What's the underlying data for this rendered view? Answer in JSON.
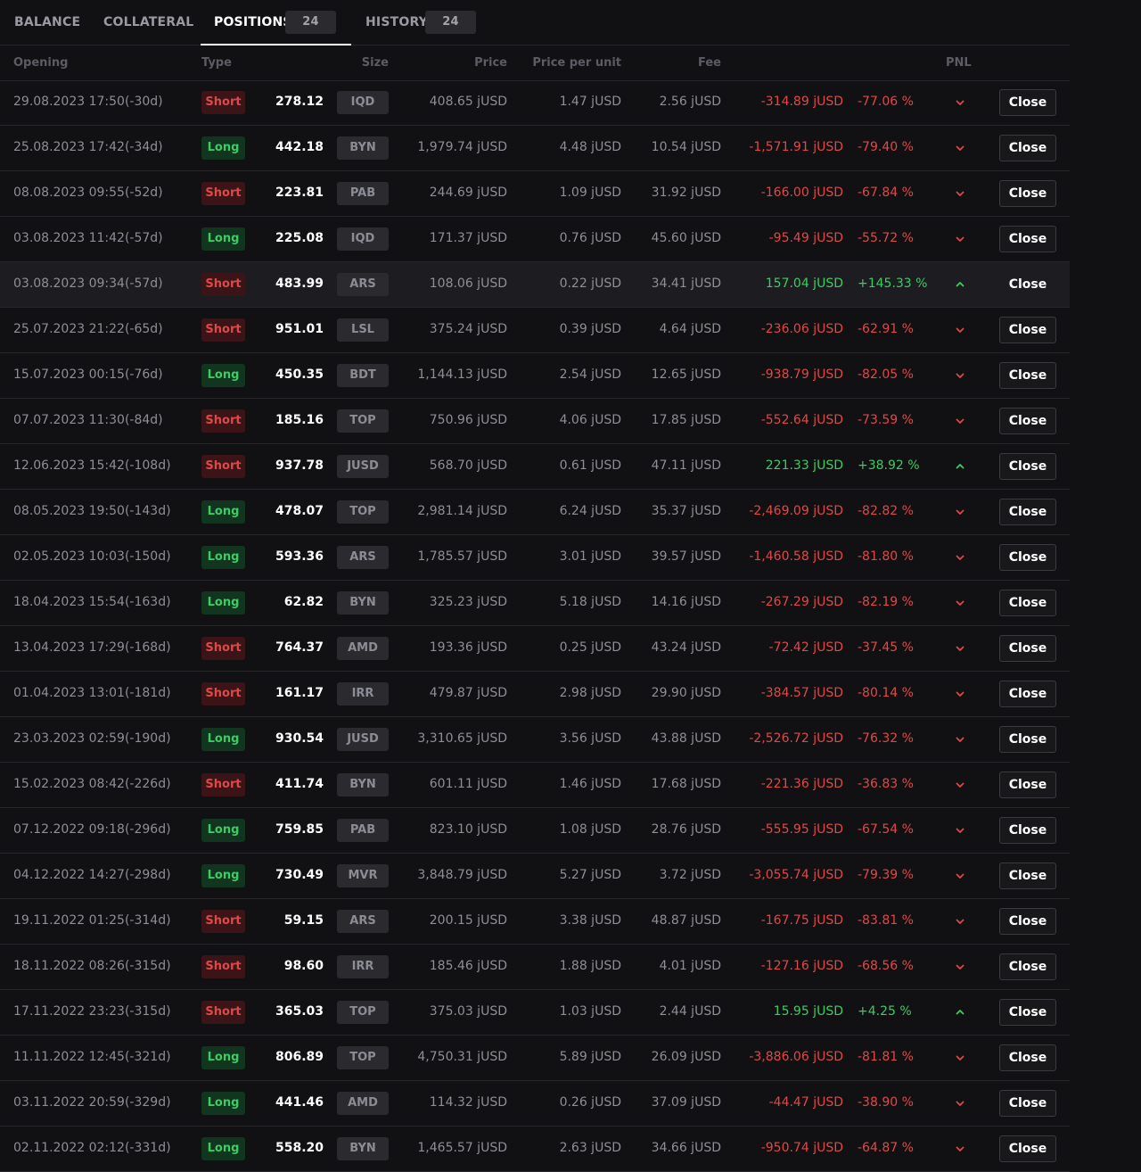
{
  "tabs": [
    {
      "label": "BALANCE",
      "count": null,
      "active": false
    },
    {
      "label": "COLLATERAL",
      "count": null,
      "active": false
    },
    {
      "label": "POSITIONS",
      "count": "24",
      "active": true
    },
    {
      "label": "HISTORY",
      "count": "24",
      "active": false
    }
  ],
  "columns": {
    "opening": "Opening",
    "type": "Type",
    "size": "Size",
    "price": "Price",
    "price_per_unit": "Price per unit",
    "fee": "Fee",
    "pnl": "PNL"
  },
  "close_label": "Close",
  "colors": {
    "negative": "#e04848",
    "positive": "#3ecb63",
    "accent": "#ffffff"
  },
  "rows": [
    {
      "opening": "29.08.2023 17:50(-30d)",
      "type": "Short",
      "size": "278.12",
      "currency": "IQD",
      "price": "408.65 jUSD",
      "ppu": "1.47 jUSD",
      "fee": "2.56 jUSD",
      "pnl": "-314.89 jUSD",
      "pnl_pct": "-77.06 %",
      "positive": false
    },
    {
      "opening": "25.08.2023 17:42(-34d)",
      "type": "Long",
      "size": "442.18",
      "currency": "BYN",
      "price": "1,979.74 jUSD",
      "ppu": "4.48 jUSD",
      "fee": "10.54 jUSD",
      "pnl": "-1,571.91 jUSD",
      "pnl_pct": "-79.40 %",
      "positive": false
    },
    {
      "opening": "08.08.2023 09:55(-52d)",
      "type": "Short",
      "size": "223.81",
      "currency": "PAB",
      "price": "244.69 jUSD",
      "ppu": "1.09 jUSD",
      "fee": "31.92 jUSD",
      "pnl": "-166.00 jUSD",
      "pnl_pct": "-67.84 %",
      "positive": false
    },
    {
      "opening": "03.08.2023 11:42(-57d)",
      "type": "Long",
      "size": "225.08",
      "currency": "IQD",
      "price": "171.37 jUSD",
      "ppu": "0.76 jUSD",
      "fee": "45.60 jUSD",
      "pnl": "-95.49 jUSD",
      "pnl_pct": "-55.72 %",
      "positive": false
    },
    {
      "opening": "03.08.2023 09:34(-57d)",
      "type": "Short",
      "size": "483.99",
      "currency": "ARS",
      "price": "108.06 jUSD",
      "ppu": "0.22 jUSD",
      "fee": "34.41 jUSD",
      "pnl": "157.04 jUSD",
      "pnl_pct": "+145.33 %",
      "positive": true,
      "highlighted": true
    },
    {
      "opening": "25.07.2023 21:22(-65d)",
      "type": "Short",
      "size": "951.01",
      "currency": "LSL",
      "price": "375.24 jUSD",
      "ppu": "0.39 jUSD",
      "fee": "4.64 jUSD",
      "pnl": "-236.06 jUSD",
      "pnl_pct": "-62.91 %",
      "positive": false
    },
    {
      "opening": "15.07.2023 00:15(-76d)",
      "type": "Long",
      "size": "450.35",
      "currency": "BDT",
      "price": "1,144.13 jUSD",
      "ppu": "2.54 jUSD",
      "fee": "12.65 jUSD",
      "pnl": "-938.79 jUSD",
      "pnl_pct": "-82.05 %",
      "positive": false
    },
    {
      "opening": "07.07.2023 11:30(-84d)",
      "type": "Short",
      "size": "185.16",
      "currency": "TOP",
      "price": "750.96 jUSD",
      "ppu": "4.06 jUSD",
      "fee": "17.85 jUSD",
      "pnl": "-552.64 jUSD",
      "pnl_pct": "-73.59 %",
      "positive": false
    },
    {
      "opening": "12.06.2023 15:42(-108d)",
      "type": "Short",
      "size": "937.78",
      "currency": "JUSD",
      "price": "568.70 jUSD",
      "ppu": "0.61 jUSD",
      "fee": "47.11 jUSD",
      "pnl": "221.33 jUSD",
      "pnl_pct": "+38.92 %",
      "positive": true
    },
    {
      "opening": "08.05.2023 19:50(-143d)",
      "type": "Long",
      "size": "478.07",
      "currency": "TOP",
      "price": "2,981.14 jUSD",
      "ppu": "6.24 jUSD",
      "fee": "35.37 jUSD",
      "pnl": "-2,469.09 jUSD",
      "pnl_pct": "-82.82 %",
      "positive": false
    },
    {
      "opening": "02.05.2023 10:03(-150d)",
      "type": "Long",
      "size": "593.36",
      "currency": "ARS",
      "price": "1,785.57 jUSD",
      "ppu": "3.01 jUSD",
      "fee": "39.57 jUSD",
      "pnl": "-1,460.58 jUSD",
      "pnl_pct": "-81.80 %",
      "positive": false
    },
    {
      "opening": "18.04.2023 15:54(-163d)",
      "type": "Long",
      "size": "62.82",
      "currency": "BYN",
      "price": "325.23 jUSD",
      "ppu": "5.18 jUSD",
      "fee": "14.16 jUSD",
      "pnl": "-267.29 jUSD",
      "pnl_pct": "-82.19 %",
      "positive": false
    },
    {
      "opening": "13.04.2023 17:29(-168d)",
      "type": "Short",
      "size": "764.37",
      "currency": "AMD",
      "price": "193.36 jUSD",
      "ppu": "0.25 jUSD",
      "fee": "43.24 jUSD",
      "pnl": "-72.42 jUSD",
      "pnl_pct": "-37.45 %",
      "positive": false
    },
    {
      "opening": "01.04.2023 13:01(-181d)",
      "type": "Short",
      "size": "161.17",
      "currency": "IRR",
      "price": "479.87 jUSD",
      "ppu": "2.98 jUSD",
      "fee": "29.90 jUSD",
      "pnl": "-384.57 jUSD",
      "pnl_pct": "-80.14 %",
      "positive": false
    },
    {
      "opening": "23.03.2023 02:59(-190d)",
      "type": "Long",
      "size": "930.54",
      "currency": "JUSD",
      "price": "3,310.65 jUSD",
      "ppu": "3.56 jUSD",
      "fee": "43.88 jUSD",
      "pnl": "-2,526.72 jUSD",
      "pnl_pct": "-76.32 %",
      "positive": false
    },
    {
      "opening": "15.02.2023 08:42(-226d)",
      "type": "Short",
      "size": "411.74",
      "currency": "BYN",
      "price": "601.11 jUSD",
      "ppu": "1.46 jUSD",
      "fee": "17.68 jUSD",
      "pnl": "-221.36 jUSD",
      "pnl_pct": "-36.83 %",
      "positive": false
    },
    {
      "opening": "07.12.2022 09:18(-296d)",
      "type": "Long",
      "size": "759.85",
      "currency": "PAB",
      "price": "823.10 jUSD",
      "ppu": "1.08 jUSD",
      "fee": "28.76 jUSD",
      "pnl": "-555.95 jUSD",
      "pnl_pct": "-67.54 %",
      "positive": false
    },
    {
      "opening": "04.12.2022 14:27(-298d)",
      "type": "Long",
      "size": "730.49",
      "currency": "MVR",
      "price": "3,848.79 jUSD",
      "ppu": "5.27 jUSD",
      "fee": "3.72 jUSD",
      "pnl": "-3,055.74 jUSD",
      "pnl_pct": "-79.39 %",
      "positive": false
    },
    {
      "opening": "19.11.2022 01:25(-314d)",
      "type": "Short",
      "size": "59.15",
      "currency": "ARS",
      "price": "200.15 jUSD",
      "ppu": "3.38 jUSD",
      "fee": "48.87 jUSD",
      "pnl": "-167.75 jUSD",
      "pnl_pct": "-83.81 %",
      "positive": false
    },
    {
      "opening": "18.11.2022 08:26(-315d)",
      "type": "Short",
      "size": "98.60",
      "currency": "IRR",
      "price": "185.46 jUSD",
      "ppu": "1.88 jUSD",
      "fee": "4.01 jUSD",
      "pnl": "-127.16 jUSD",
      "pnl_pct": "-68.56 %",
      "positive": false
    },
    {
      "opening": "17.11.2022 23:23(-315d)",
      "type": "Short",
      "size": "365.03",
      "currency": "TOP",
      "price": "375.03 jUSD",
      "ppu": "1.03 jUSD",
      "fee": "2.44 jUSD",
      "pnl": "15.95 jUSD",
      "pnl_pct": "+4.25 %",
      "positive": true
    },
    {
      "opening": "11.11.2022 12:45(-321d)",
      "type": "Long",
      "size": "806.89",
      "currency": "TOP",
      "price": "4,750.31 jUSD",
      "ppu": "5.89 jUSD",
      "fee": "26.09 jUSD",
      "pnl": "-3,886.06 jUSD",
      "pnl_pct": "-81.81 %",
      "positive": false
    },
    {
      "opening": "03.11.2022 20:59(-329d)",
      "type": "Long",
      "size": "441.46",
      "currency": "AMD",
      "price": "114.32 jUSD",
      "ppu": "0.26 jUSD",
      "fee": "37.09 jUSD",
      "pnl": "-44.47 jUSD",
      "pnl_pct": "-38.90 %",
      "positive": false
    },
    {
      "opening": "02.11.2022 02:12(-331d)",
      "type": "Long",
      "size": "558.20",
      "currency": "BYN",
      "price": "1,465.57 jUSD",
      "ppu": "2.63 jUSD",
      "fee": "34.66 jUSD",
      "pnl": "-950.74 jUSD",
      "pnl_pct": "-64.87 %",
      "positive": false
    }
  ]
}
